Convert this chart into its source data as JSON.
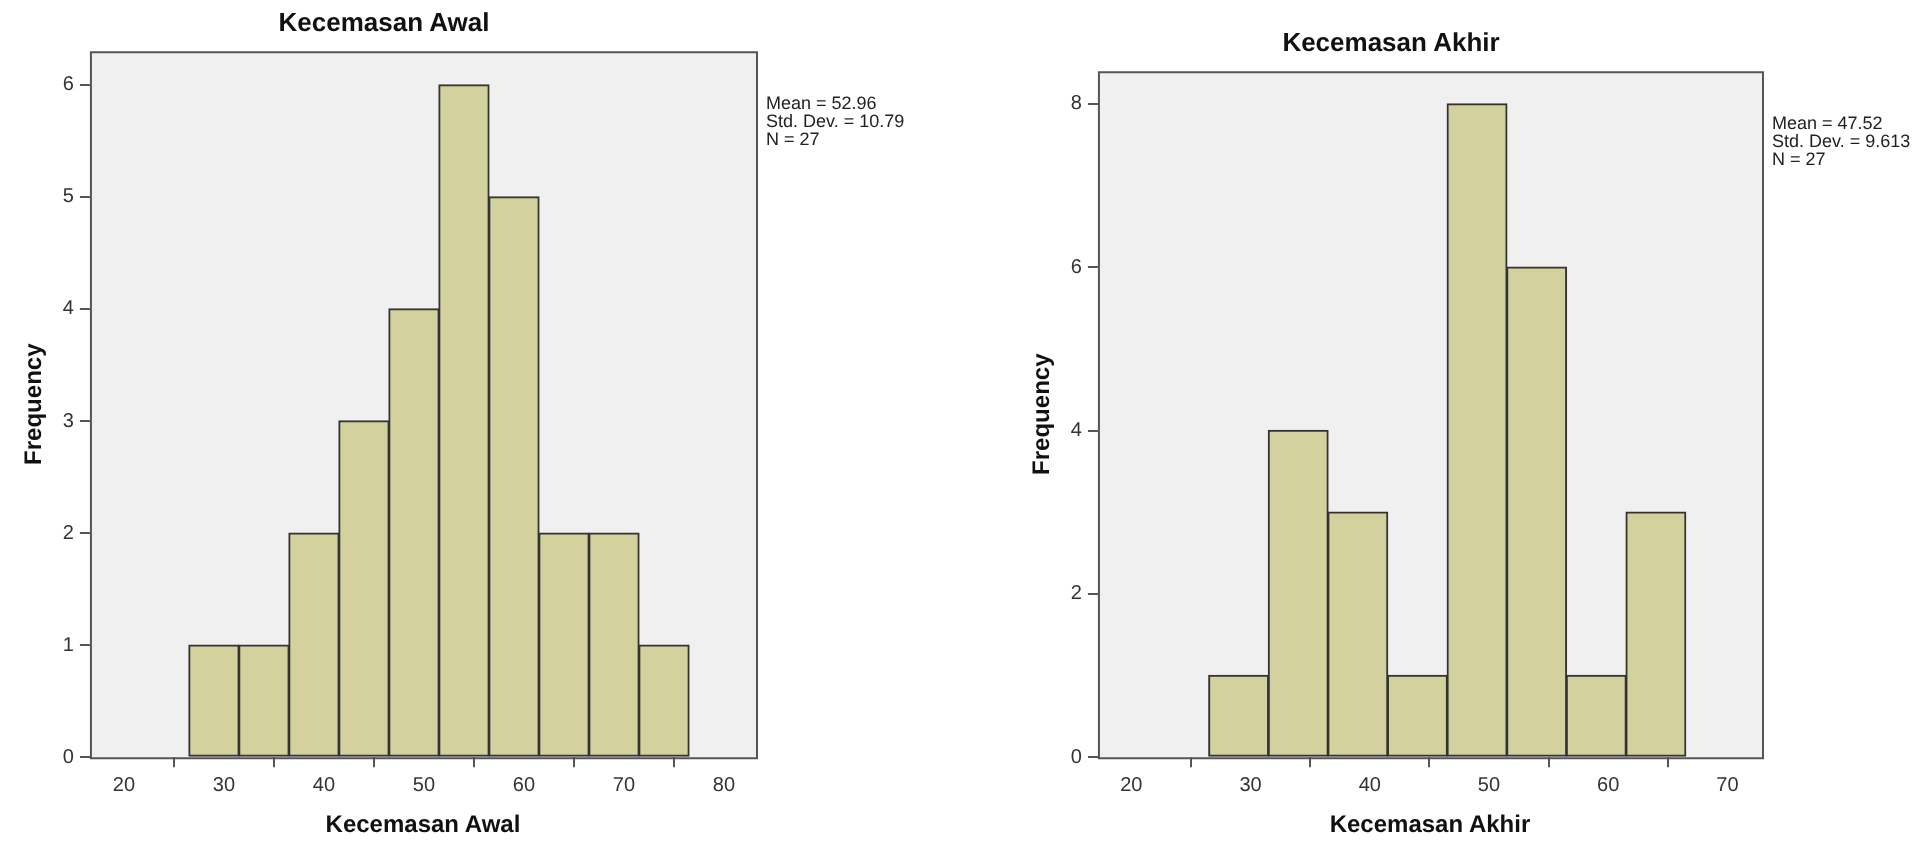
{
  "chart_data": [
    {
      "type": "histogram",
      "title": "Kecemasan Awal",
      "xlabel": "Kecemasan Awal",
      "ylabel": "Frequency",
      "color": "#d3d29e",
      "bins": [
        26.5,
        31.5,
        36.5,
        41.5,
        46.5,
        51.5,
        56.5,
        61.5,
        66.5,
        71.5,
        76.5
      ],
      "values": [
        1,
        1,
        2,
        3,
        4,
        6,
        5,
        2,
        2,
        1
      ],
      "xlim": [
        16.6,
        83.2
      ],
      "xticks": [
        20,
        30,
        40,
        50,
        60,
        70,
        80
      ],
      "ylim": [
        0,
        6.3
      ],
      "yticks": [
        0,
        1,
        2,
        3,
        4,
        5,
        6
      ],
      "annotations": [
        "Mean = 52.96",
        "Std. Dev. = 10.79",
        "N = 27"
      ]
    },
    {
      "type": "histogram",
      "title": "Kecemasan Akhir",
      "xlabel": "Kecemasan Akhir",
      "ylabel": "Frequency",
      "color": "#d3d29e",
      "bins": [
        26.5,
        31.5,
        36.5,
        41.5,
        46.5,
        51.5,
        56.5,
        61.5,
        66.5
      ],
      "values": [
        1,
        4,
        3,
        1,
        8,
        6,
        1,
        3
      ],
      "xlim": [
        17.2,
        72.9
      ],
      "xticks": [
        20,
        30,
        40,
        50,
        60,
        70
      ],
      "ylim": [
        0,
        8.4
      ],
      "yticks": [
        0,
        2,
        4,
        6,
        8
      ],
      "annotations": [
        "Mean = 47.52",
        "Std. Dev. = 9.613",
        "N = 27"
      ]
    }
  ]
}
